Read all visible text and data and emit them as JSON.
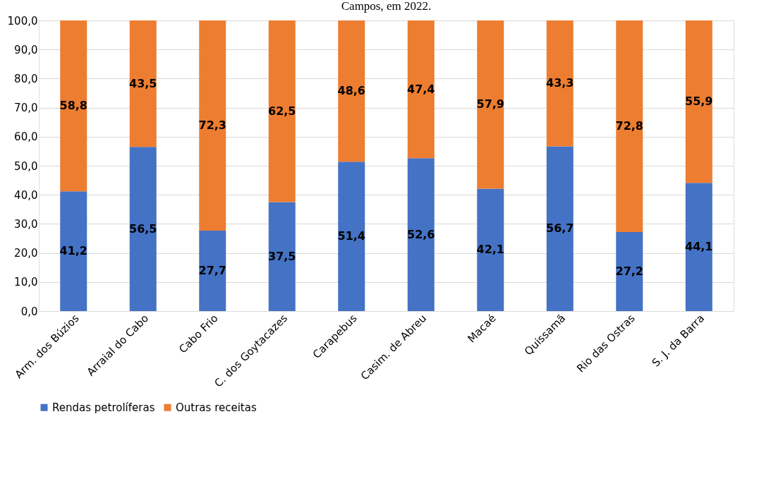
{
  "chart_data": {
    "type": "bar",
    "stacked": true,
    "title": "Campos, em 2022.",
    "categories": [
      "Arm. dos Búzios",
      "Arraial do Cabo",
      "Cabo Frio",
      "C. dos Goytacazes",
      "Carapebus",
      "Casim. de Abreu",
      "Macaé",
      "Quissamã",
      "Rio das Ostras",
      "S. J. da Barra"
    ],
    "series": [
      {
        "name": "Rendas petrolíferas",
        "color": "#4472c4",
        "values": [
          41.2,
          56.5,
          27.7,
          37.5,
          51.4,
          52.6,
          42.1,
          56.7,
          27.2,
          44.1
        ],
        "value_labels": [
          "41,2",
          "56,5",
          "27,7",
          "37,5",
          "51,4",
          "52,6",
          "42,1",
          "56,7",
          "27,2",
          "44,1"
        ]
      },
      {
        "name": "Outras receitas",
        "color": "#ed7d31",
        "values": [
          58.8,
          43.5,
          72.3,
          62.5,
          48.6,
          47.4,
          57.9,
          43.3,
          72.8,
          55.9
        ],
        "value_labels": [
          "58,8",
          "43,5",
          "72,3",
          "62,5",
          "48,6",
          "47,4",
          "57,9",
          "43,3",
          "72,8",
          "55,9"
        ]
      }
    ],
    "ylim": [
      0,
      100
    ],
    "yticks": [
      {
        "value": 0,
        "label": "0,0"
      },
      {
        "value": 10,
        "label": "10,0"
      },
      {
        "value": 20,
        "label": "20,0"
      },
      {
        "value": 30,
        "label": "30,0"
      },
      {
        "value": 40,
        "label": "40,0"
      },
      {
        "value": 50,
        "label": "50,0"
      },
      {
        "value": 60,
        "label": "60,0"
      },
      {
        "value": 70,
        "label": "70,0"
      },
      {
        "value": 80,
        "label": "80,0"
      },
      {
        "value": 90,
        "label": "90,0"
      },
      {
        "value": 100,
        "label": "100,0"
      }
    ],
    "grid": "y",
    "legend": "bottom"
  }
}
